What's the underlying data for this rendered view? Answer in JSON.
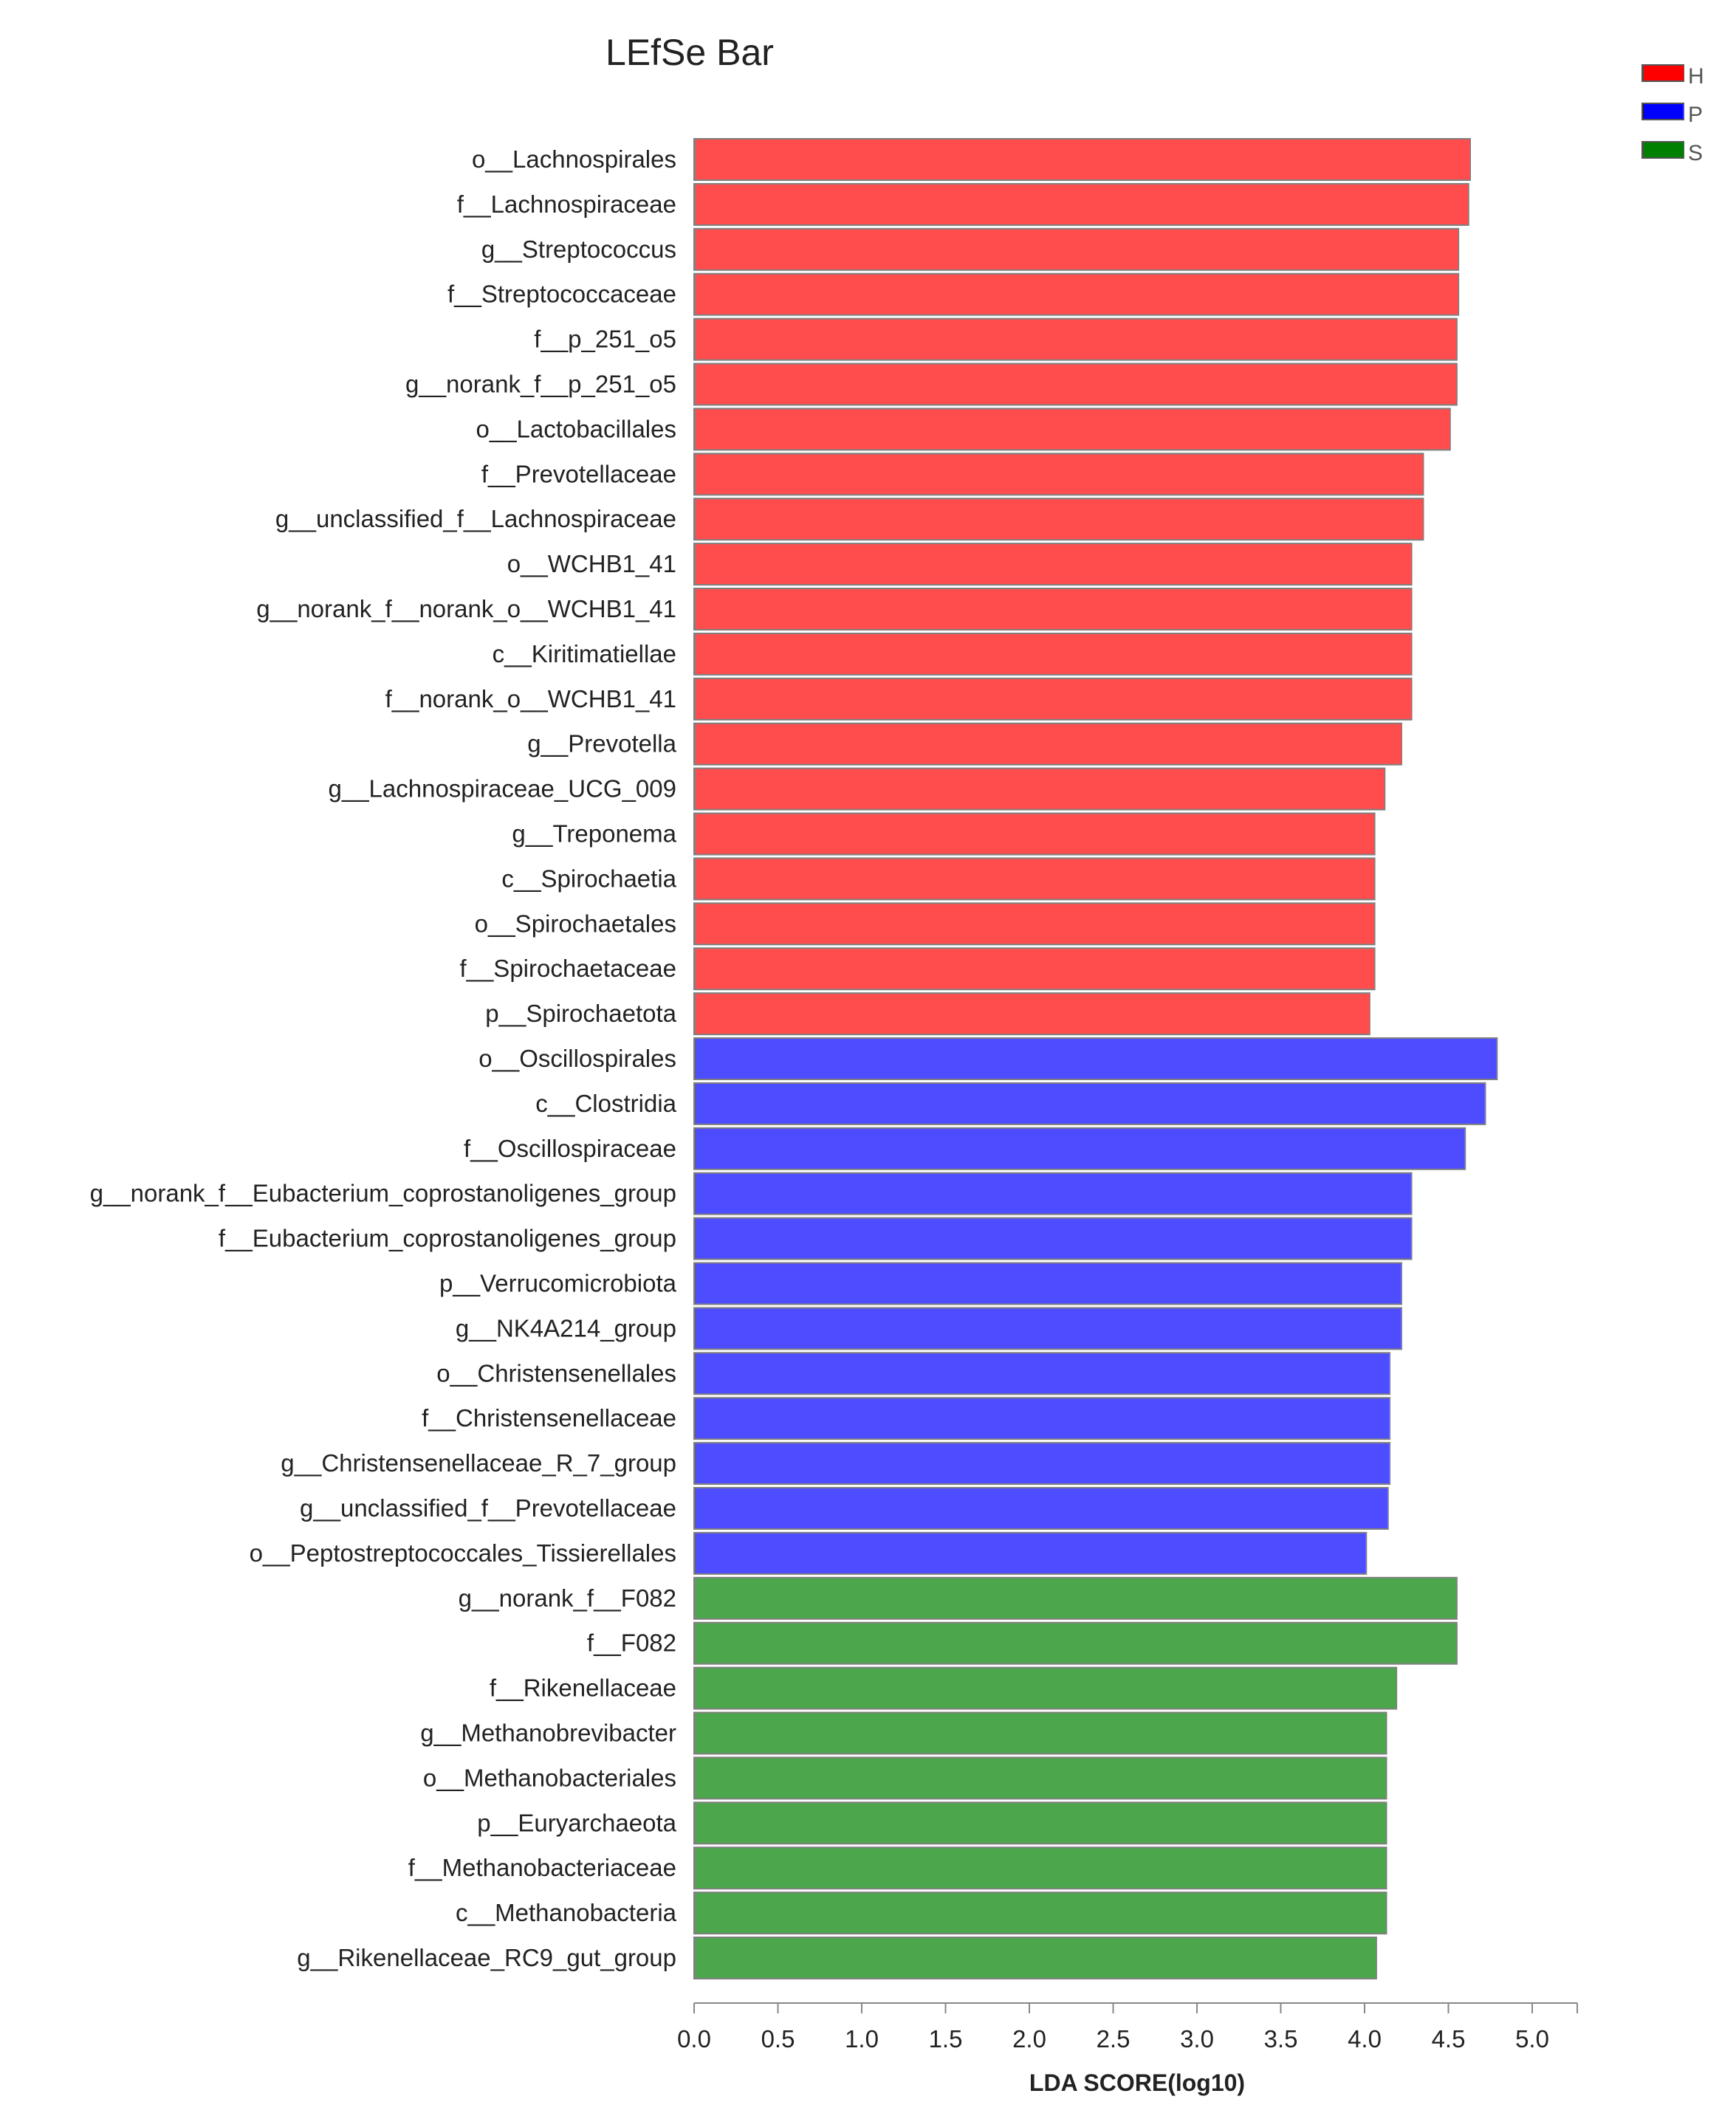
{
  "chart_data": {
    "type": "bar",
    "orientation": "horizontal",
    "title": "LEfSe Bar",
    "xlabel": "LDA SCORE(log10)",
    "ylabel": "",
    "xlim": [
      0,
      5.2
    ],
    "xticks": [
      "0.0",
      "0.5",
      "1.0",
      "1.5",
      "2.0",
      "2.5",
      "3.0",
      "3.5",
      "4.0",
      "4.5",
      "5.0"
    ],
    "legend_position": "top-right",
    "groups": [
      {
        "name": "H",
        "color": "#ff4d4d",
        "border": "#ff0000"
      },
      {
        "name": "P",
        "color": "#4d4dff",
        "border": "#0000ff"
      },
      {
        "name": "S",
        "color": "#4ca64c",
        "border": "#008000"
      }
    ],
    "bars": [
      {
        "label": "o__Lachnospirales",
        "value": 4.63,
        "group": "H"
      },
      {
        "label": "f__Lachnospiraceae",
        "value": 4.62,
        "group": "H"
      },
      {
        "label": "g__Streptococcus",
        "value": 4.56,
        "group": "H"
      },
      {
        "label": "f__Streptococcaceae",
        "value": 4.56,
        "group": "H"
      },
      {
        "label": "f__p_251_o5",
        "value": 4.55,
        "group": "H"
      },
      {
        "label": "g__norank_f__p_251_o5",
        "value": 4.55,
        "group": "H"
      },
      {
        "label": "o__Lactobacillales",
        "value": 4.51,
        "group": "H"
      },
      {
        "label": "f__Prevotellaceae",
        "value": 4.35,
        "group": "H"
      },
      {
        "label": "g__unclassified_f__Lachnospiraceae",
        "value": 4.35,
        "group": "H"
      },
      {
        "label": "o__WCHB1_41",
        "value": 4.28,
        "group": "H"
      },
      {
        "label": "g__norank_f__norank_o__WCHB1_41",
        "value": 4.28,
        "group": "H"
      },
      {
        "label": "c__Kiritimatiellae",
        "value": 4.28,
        "group": "H"
      },
      {
        "label": "f__norank_o__WCHB1_41",
        "value": 4.28,
        "group": "H"
      },
      {
        "label": "g__Prevotella",
        "value": 4.22,
        "group": "H"
      },
      {
        "label": "g__Lachnospiraceae_UCG_009",
        "value": 4.12,
        "group": "H"
      },
      {
        "label": "g__Treponema",
        "value": 4.06,
        "group": "H"
      },
      {
        "label": "c__Spirochaetia",
        "value": 4.06,
        "group": "H"
      },
      {
        "label": "o__Spirochaetales",
        "value": 4.06,
        "group": "H"
      },
      {
        "label": "f__Spirochaetaceae",
        "value": 4.06,
        "group": "H"
      },
      {
        "label": "p__Spirochaetota",
        "value": 4.03,
        "group": "H"
      },
      {
        "label": "o__Oscillospirales",
        "value": 4.79,
        "group": "P"
      },
      {
        "label": "c__Clostridia",
        "value": 4.72,
        "group": "P"
      },
      {
        "label": "f__Oscillospiraceae",
        "value": 4.6,
        "group": "P"
      },
      {
        "label": "g__norank_f__Eubacterium_coprostanoligenes_group",
        "value": 4.28,
        "group": "P"
      },
      {
        "label": "f__Eubacterium_coprostanoligenes_group",
        "value": 4.28,
        "group": "P"
      },
      {
        "label": "p__Verrucomicrobiota",
        "value": 4.22,
        "group": "P"
      },
      {
        "label": "g__NK4A214_group",
        "value": 4.22,
        "group": "P"
      },
      {
        "label": "o__Christensenellales",
        "value": 4.15,
        "group": "P"
      },
      {
        "label": "f__Christensenellaceae",
        "value": 4.15,
        "group": "P"
      },
      {
        "label": "g__Christensenellaceae_R_7_group",
        "value": 4.15,
        "group": "P"
      },
      {
        "label": "g__unclassified_f__Prevotellaceae",
        "value": 4.14,
        "group": "P"
      },
      {
        "label": "o__Peptostreptococcales_Tissierellales",
        "value": 4.01,
        "group": "P"
      },
      {
        "label": "g__norank_f__F082",
        "value": 4.55,
        "group": "S"
      },
      {
        "label": "f__F082",
        "value": 4.55,
        "group": "S"
      },
      {
        "label": "f__Rikenellaceae",
        "value": 4.19,
        "group": "S"
      },
      {
        "label": "g__Methanobrevibacter",
        "value": 4.13,
        "group": "S"
      },
      {
        "label": "o__Methanobacteriales",
        "value": 4.13,
        "group": "S"
      },
      {
        "label": "p__Euryarchaeota",
        "value": 4.13,
        "group": "S"
      },
      {
        "label": "f__Methanobacteriaceae",
        "value": 4.13,
        "group": "S"
      },
      {
        "label": "c__Methanobacteria",
        "value": 4.13,
        "group": "S"
      },
      {
        "label": "g__Rikenellaceae_RC9_gut_group",
        "value": 4.07,
        "group": "S"
      }
    ]
  }
}
